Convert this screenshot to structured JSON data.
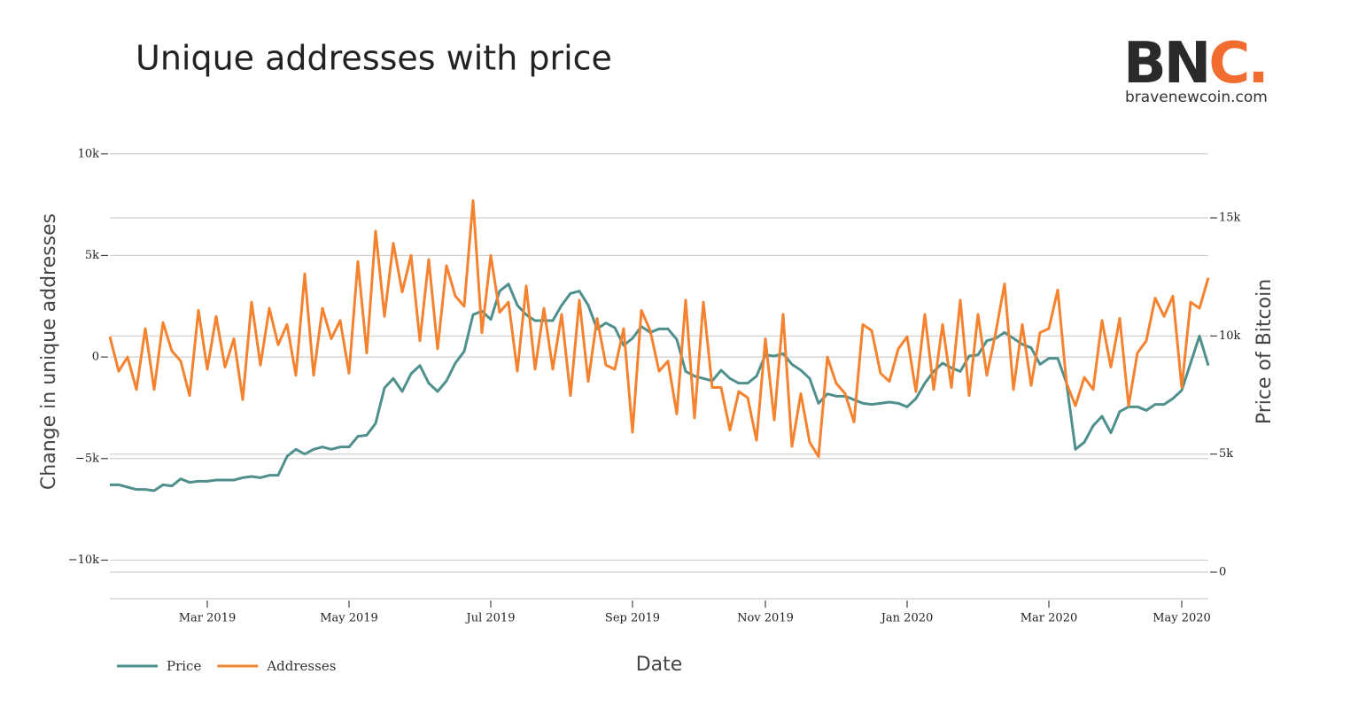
{
  "logo": {
    "letters": "BN",
    "accent": "C.",
    "site": "bravenewcoin.com"
  },
  "chart_data": {
    "type": "line",
    "title": "Unique addresses with price",
    "x_label": "Date",
    "y_label": "Change in unique addresses",
    "y2_label": "Price of Bitcoin",
    "legend": "bottom-left",
    "grid": true,
    "categories": [
      null,
      null,
      null,
      null,
      null,
      null,
      null,
      null,
      null,
      null,
      null,
      "Mar 2019",
      null,
      null,
      null,
      null,
      null,
      null,
      null,
      null,
      null,
      null,
      null,
      null,
      null,
      null,
      null,
      "May 2019",
      null,
      null,
      null,
      null,
      null,
      null,
      null,
      null,
      null,
      null,
      null,
      null,
      null,
      null,
      null,
      "Jul 2019",
      null,
      null,
      null,
      null,
      null,
      null,
      null,
      null,
      null,
      null,
      null,
      null,
      null,
      null,
      null,
      "Sep 2019",
      null,
      null,
      null,
      null,
      null,
      null,
      null,
      null,
      null,
      null,
      null,
      null,
      null,
      null,
      "Nov 2019",
      null,
      null,
      null,
      null,
      null,
      null,
      null,
      null,
      null,
      null,
      null,
      null,
      null,
      null,
      null,
      "Jan 2020",
      null,
      null,
      null,
      null,
      null,
      null,
      null,
      null,
      null,
      null,
      null,
      null,
      null,
      null,
      null,
      "Mar 2020",
      null,
      null,
      null,
      null,
      null,
      null,
      null,
      null,
      null,
      null,
      null,
      null,
      null,
      null,
      "May 2020",
      null,
      null,
      null
    ],
    "ylim": [
      -11900,
      10600
    ],
    "yticks": [
      {
        "value": -10000,
        "label": "−10k"
      },
      {
        "value": -5000,
        "label": "−5k"
      },
      0,
      {
        "value": 5000,
        "label": "5k"
      },
      {
        "value": 10000,
        "label": "10k"
      }
    ],
    "y2lim": [
      -1125,
      18225
    ],
    "y2ticks": [
      0,
      {
        "value": 5000,
        "label": "5k"
      },
      {
        "value": 10000,
        "label": "10k"
      },
      {
        "value": 15000,
        "label": "15k"
      }
    ],
    "series": [
      {
        "name": "Price",
        "color": "#4f8f8c",
        "axis": "y2",
        "values": [
          3700,
          3700,
          3600,
          3500,
          3500,
          3450,
          3700,
          3650,
          3950,
          3800,
          3850,
          3850,
          3900,
          3900,
          3900,
          4000,
          4050,
          4000,
          4100,
          4100,
          4900,
          5200,
          5000,
          5200,
          5300,
          5200,
          5300,
          5300,
          5750,
          5800,
          6300,
          7800,
          8200,
          7650,
          8400,
          8750,
          8000,
          7650,
          8100,
          8850,
          9350,
          10900,
          11050,
          10700,
          11900,
          12200,
          11300,
          10900,
          10650,
          10650,
          10650,
          11300,
          11800,
          11900,
          11300,
          10300,
          10550,
          10350,
          9600,
          9900,
          10400,
          10150,
          10300,
          10300,
          9850,
          8500,
          8300,
          8200,
          8100,
          8550,
          8200,
          8000,
          8000,
          8300,
          9200,
          9150,
          9250,
          8800,
          8550,
          8200,
          7150,
          7550,
          7450,
          7450,
          7300,
          7150,
          7100,
          7150,
          7200,
          7150,
          7000,
          7350,
          8000,
          8500,
          8850,
          8650,
          8500,
          9150,
          9200,
          9800,
          9900,
          10150,
          9900,
          9650,
          9500,
          8800,
          9050,
          9050,
          8000,
          5200,
          5500,
          6200,
          6600,
          5900,
          6800,
          7000,
          7000,
          6850,
          7100,
          7100,
          7350,
          7700,
          8850,
          10000,
          8750
        ]
      },
      {
        "name": "Addresses",
        "color": "#f5822f",
        "values": [
          1000,
          -700,
          0,
          -1600,
          1400,
          -1600,
          1700,
          300,
          -200,
          -1900,
          2300,
          -600,
          2000,
          -500,
          900,
          -2100,
          2700,
          -400,
          2400,
          600,
          1600,
          -900,
          4100,
          -900,
          2400,
          900,
          1800,
          -800,
          4700,
          200,
          6200,
          2000,
          5600,
          3200,
          5000,
          800,
          4800,
          400,
          4500,
          3000,
          2500,
          7700,
          1200,
          5000,
          2200,
          2700,
          -700,
          3500,
          -600,
          2400,
          -600,
          2100,
          -1900,
          2800,
          -1200,
          1900,
          -400,
          -600,
          1400,
          -3700,
          2300,
          1300,
          -700,
          -200,
          -2800,
          2800,
          -3000,
          2700,
          -1500,
          -1500,
          -3600,
          -1700,
          -2000,
          -4100,
          900,
          -3100,
          2100,
          -4400,
          -1800,
          -4200,
          -4900,
          0,
          -1300,
          -1800,
          -3200,
          1600,
          1300,
          -800,
          -1200,
          400,
          1000,
          -1700,
          2100,
          -1600,
          1600,
          -1500,
          2800,
          -1900,
          2100,
          -900,
          1200,
          3600,
          -1600,
          1600,
          -1400,
          1200,
          1400,
          3300,
          -1300,
          -2400,
          -1000,
          -1600,
          1800,
          -500,
          1900,
          -2400,
          200,
          800,
          2900,
          2000,
          3000,
          -1500,
          2700,
          2400,
          3900
        ]
      }
    ]
  }
}
